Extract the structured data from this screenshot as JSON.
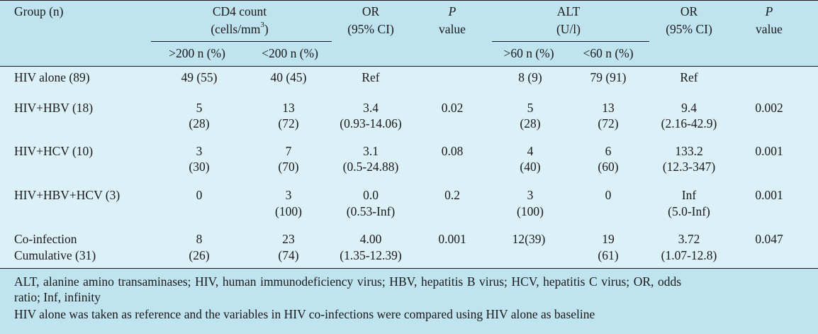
{
  "table": {
    "header": {
      "group": "Group (n)",
      "cd4_title": "CD4 count",
      "cd4_unit_pre": "(cells/mm",
      "cd4_unit_sup": "3",
      "cd4_unit_post": ")",
      "or1_l1": "OR",
      "or1_l2": "(95% CI)",
      "p1_l1": "P",
      "p1_l2": "value",
      "alt_title": "ALT",
      "alt_unit": "(U/l)",
      "or2_l1": "OR",
      "or2_l2": "(95% CI)",
      "p2_l1": "P",
      "p2_l2": "value",
      "cd4_gt": ">200 n (%)",
      "cd4_lt": "<200 n (%)",
      "alt_gt": ">60 n (%)",
      "alt_lt": "<60 n (%)"
    },
    "rows": [
      {
        "group": [
          "HIV alone (89)"
        ],
        "cd4_gt": [
          "49 (55)"
        ],
        "cd4_lt": [
          "40 (45)"
        ],
        "or1": [
          "Ref"
        ],
        "p1": [
          ""
        ],
        "alt_gt": [
          "8 (9)"
        ],
        "alt_lt": [
          "79 (91)"
        ],
        "or2": [
          "Ref"
        ],
        "p2": [
          ""
        ]
      },
      {
        "group": [
          "HIV+HBV (18)"
        ],
        "cd4_gt": [
          "5",
          "(28)"
        ],
        "cd4_lt": [
          "13",
          "(72)"
        ],
        "or1": [
          "3.4",
          "(0.93-14.06)"
        ],
        "p1": [
          "0.02"
        ],
        "alt_gt": [
          "5",
          "(28)"
        ],
        "alt_lt": [
          "13",
          "(72)"
        ],
        "or2": [
          "9.4",
          "(2.16-42.9)"
        ],
        "p2": [
          "0.002"
        ]
      },
      {
        "group": [
          "HIV+HCV (10)"
        ],
        "cd4_gt": [
          "3",
          "(30)"
        ],
        "cd4_lt": [
          "7",
          "(70)"
        ],
        "or1": [
          "3.1",
          "(0.5-24.88)"
        ],
        "p1": [
          "0.08"
        ],
        "alt_gt": [
          "4",
          "(40)"
        ],
        "alt_lt": [
          "6",
          "(60)"
        ],
        "or2": [
          "133.2",
          "(12.3-347)"
        ],
        "p2": [
          "0.001"
        ]
      },
      {
        "group": [
          "HIV+HBV+HCV (3)"
        ],
        "cd4_gt": [
          "0"
        ],
        "cd4_lt": [
          "3",
          "(100)"
        ],
        "or1": [
          "0.0",
          "(0.53-Inf)"
        ],
        "p1": [
          "0.2"
        ],
        "alt_gt": [
          "3",
          "(100)"
        ],
        "alt_lt": [
          "0"
        ],
        "or2": [
          "Inf",
          "(5.0-Inf)"
        ],
        "p2": [
          "0.001"
        ]
      },
      {
        "group": [
          "Co-infection",
          "Cumulative (31)"
        ],
        "cd4_gt": [
          "8",
          "(26)"
        ],
        "cd4_lt": [
          "23",
          "(74)"
        ],
        "or1": [
          "4.00",
          "(1.35-12.39)"
        ],
        "p1": [
          "0.001"
        ],
        "alt_gt": [
          "12(39)"
        ],
        "alt_lt": [
          "19",
          "(61)"
        ],
        "or2": [
          "3.72",
          "(1.07-12.8)"
        ],
        "p2": [
          "0.047"
        ]
      }
    ],
    "footnotes": [
      "ALT, alanine amino transaminases; HIV, human immunodeficiency virus; HBV, hepatitis B virus; HCV, hepatitis C virus; OR, odds",
      "ratio; Inf, infinity",
      "HIV alone was taken as reference and the variables in HIV co-infections were compared using HIV alone as baseline"
    ]
  }
}
